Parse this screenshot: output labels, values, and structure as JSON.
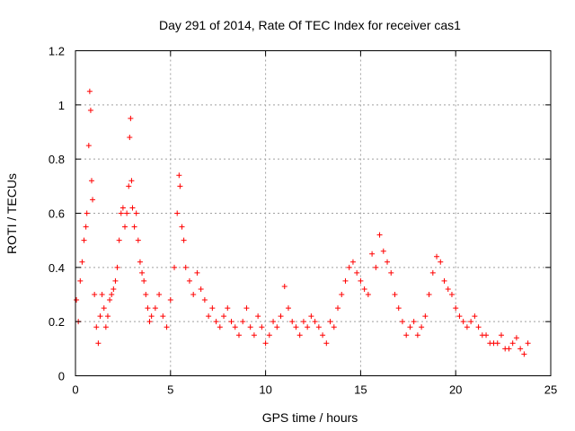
{
  "chart_data": {
    "type": "scatter",
    "title": "Day 291 of 2014, Rate Of TEC Index for receiver cas1",
    "xlabel": "GPS time / hours",
    "ylabel": "ROTI / TECUs",
    "xlim": [
      0,
      25
    ],
    "ylim": [
      0,
      1.2
    ],
    "x_ticks": [
      "0",
      "5",
      "10",
      "15",
      "20",
      "25"
    ],
    "y_ticks": [
      "0",
      "0.2",
      "0.4",
      "0.6",
      "0.8",
      "1",
      "1.2"
    ],
    "grid": true,
    "marker": "+",
    "color": "#ff0000",
    "series": [
      {
        "x": [
          0.05,
          0.15,
          0.25,
          0.35,
          0.45,
          0.55,
          0.6,
          0.7,
          0.75,
          0.8,
          0.85,
          0.9,
          1.0,
          1.1,
          1.2,
          1.3,
          1.4,
          1.5,
          1.6,
          1.7,
          1.8,
          1.9,
          2.0,
          2.1,
          2.2,
          2.3,
          2.4,
          2.5,
          2.6,
          2.7,
          2.8,
          2.85,
          2.9,
          2.95,
          3.0,
          3.1,
          3.2,
          3.3,
          3.4,
          3.5,
          3.6,
          3.7,
          3.8,
          3.9,
          4.0,
          4.2,
          4.4,
          4.6,
          4.8,
          5.0,
          5.2,
          5.35,
          5.45,
          5.5,
          5.6,
          5.7,
          5.8,
          6.0,
          6.2,
          6.4,
          6.6,
          6.8,
          7.0,
          7.2,
          7.4,
          7.6,
          7.8,
          8.0,
          8.2,
          8.4,
          8.6,
          8.8,
          9.0,
          9.2,
          9.4,
          9.6,
          9.8,
          10.0,
          10.2,
          10.4,
          10.6,
          10.8,
          11.0,
          11.2,
          11.4,
          11.6,
          11.8,
          12.0,
          12.2,
          12.4,
          12.6,
          12.8,
          13.0,
          13.2,
          13.4,
          13.6,
          13.8,
          14.0,
          14.2,
          14.4,
          14.6,
          14.8,
          15.0,
          15.2,
          15.4,
          15.6,
          15.8,
          16.0,
          16.2,
          16.4,
          16.6,
          16.8,
          17.0,
          17.2,
          17.4,
          17.6,
          17.8,
          18.0,
          18.2,
          18.4,
          18.6,
          18.8,
          19.0,
          19.2,
          19.4,
          19.6,
          19.8,
          20.0,
          20.2,
          20.4,
          20.6,
          20.8,
          21.0,
          21.2,
          21.4,
          21.6,
          21.8,
          22.0,
          22.2,
          22.4,
          22.6,
          22.8,
          23.0,
          23.2,
          23.4,
          23.6,
          23.8
        ],
        "y": [
          0.28,
          0.2,
          0.35,
          0.42,
          0.5,
          0.55,
          0.6,
          0.85,
          1.05,
          0.98,
          0.72,
          0.65,
          0.3,
          0.18,
          0.12,
          0.22,
          0.3,
          0.25,
          0.18,
          0.22,
          0.28,
          0.3,
          0.32,
          0.35,
          0.4,
          0.5,
          0.6,
          0.62,
          0.55,
          0.6,
          0.7,
          0.88,
          0.95,
          0.72,
          0.62,
          0.55,
          0.6,
          0.5,
          0.42,
          0.38,
          0.35,
          0.3,
          0.25,
          0.2,
          0.22,
          0.25,
          0.3,
          0.22,
          0.18,
          0.28,
          0.4,
          0.6,
          0.74,
          0.7,
          0.55,
          0.5,
          0.4,
          0.35,
          0.3,
          0.38,
          0.32,
          0.28,
          0.22,
          0.25,
          0.2,
          0.18,
          0.22,
          0.25,
          0.2,
          0.18,
          0.15,
          0.2,
          0.25,
          0.18,
          0.15,
          0.22,
          0.18,
          0.12,
          0.15,
          0.2,
          0.18,
          0.22,
          0.33,
          0.25,
          0.2,
          0.18,
          0.15,
          0.2,
          0.18,
          0.22,
          0.2,
          0.18,
          0.15,
          0.12,
          0.2,
          0.18,
          0.25,
          0.3,
          0.35,
          0.4,
          0.42,
          0.38,
          0.35,
          0.32,
          0.3,
          0.45,
          0.4,
          0.52,
          0.46,
          0.42,
          0.38,
          0.3,
          0.25,
          0.2,
          0.15,
          0.18,
          0.2,
          0.15,
          0.18,
          0.22,
          0.3,
          0.38,
          0.44,
          0.42,
          0.35,
          0.32,
          0.3,
          0.25,
          0.22,
          0.2,
          0.18,
          0.2,
          0.22,
          0.18,
          0.15,
          0.15,
          0.12,
          0.12,
          0.12,
          0.15,
          0.1,
          0.1,
          0.12,
          0.14,
          0.1,
          0.08,
          0.12
        ]
      }
    ]
  }
}
